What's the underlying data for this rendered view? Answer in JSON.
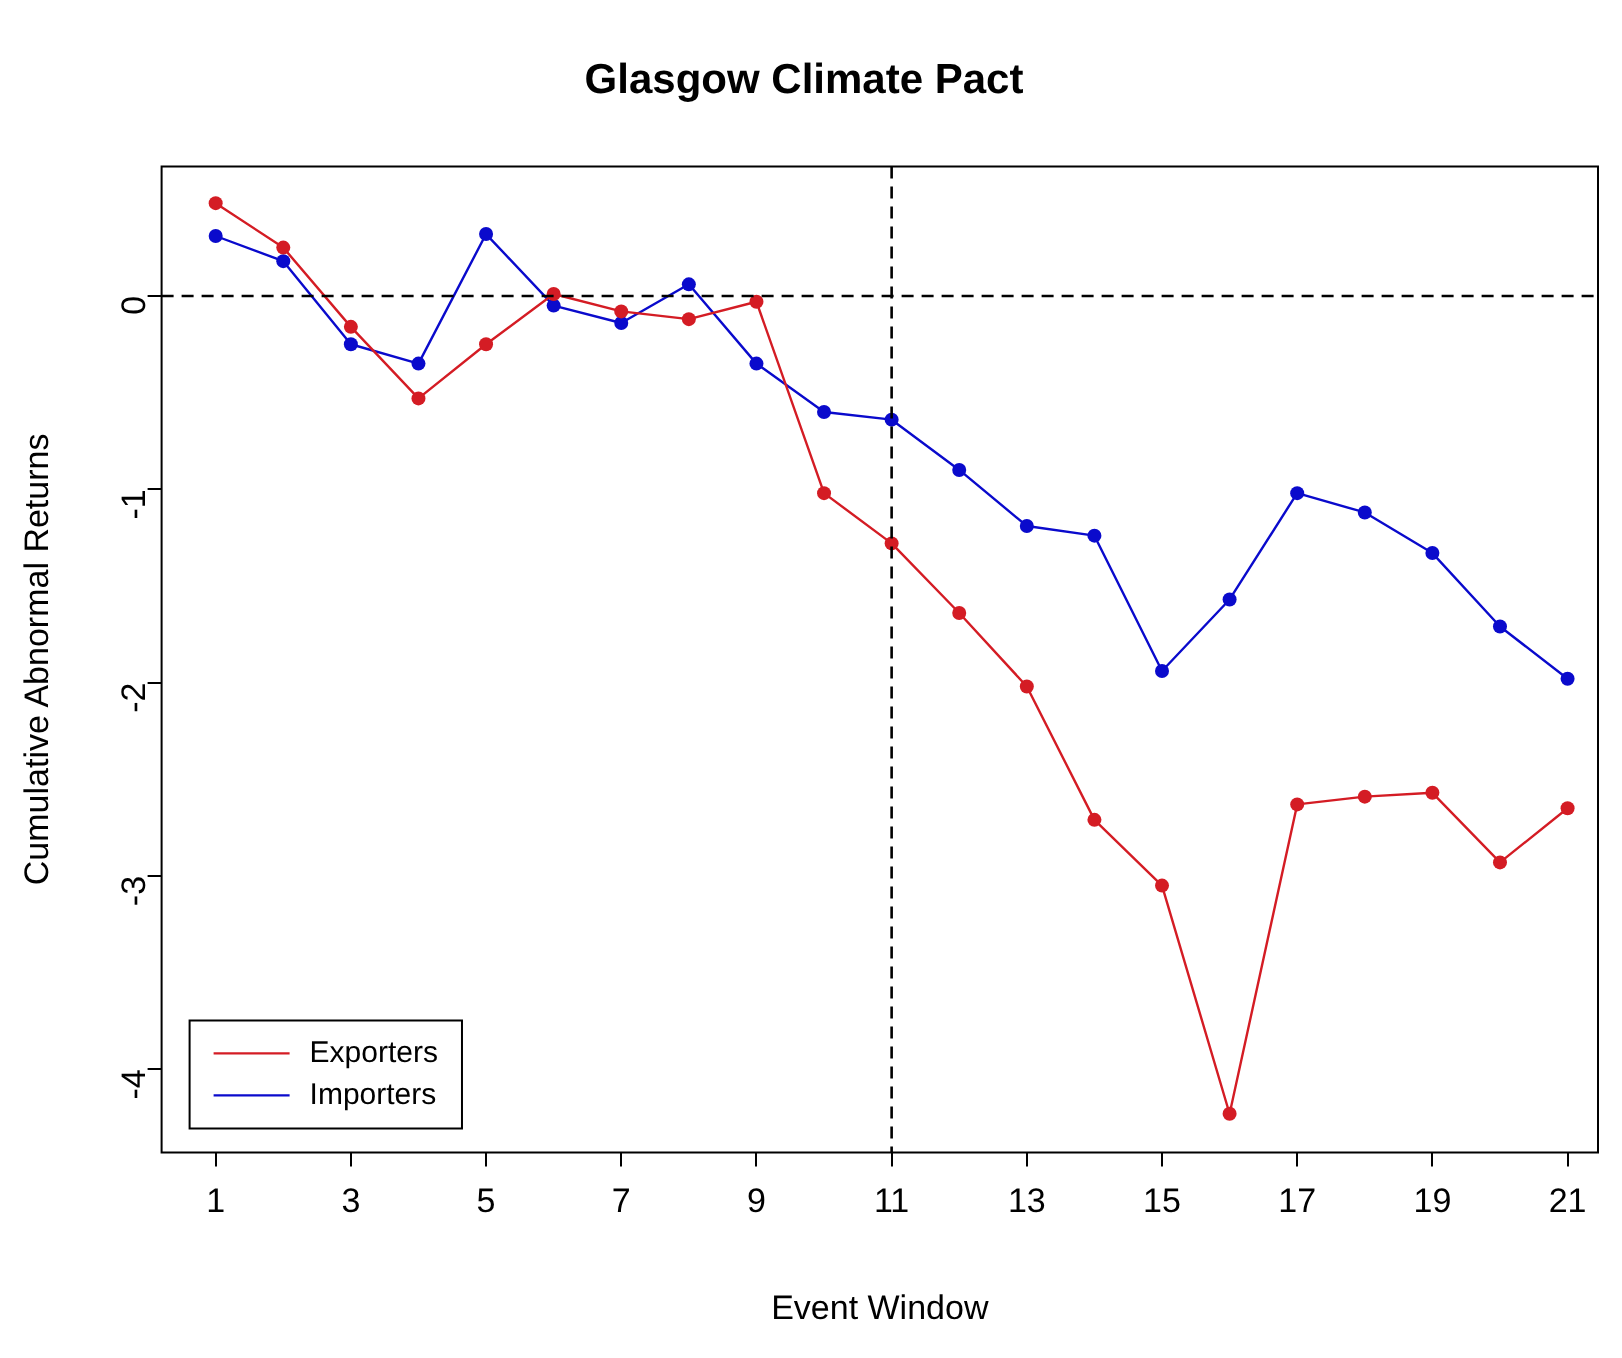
{
  "chart_data": {
    "type": "line",
    "title": "Glasgow Climate Pact",
    "xlabel": "Event Window",
    "ylabel": "Cumulative Abnormal Returns",
    "x": [
      1,
      2,
      3,
      4,
      5,
      6,
      7,
      8,
      9,
      10,
      11,
      12,
      13,
      14,
      15,
      16,
      17,
      18,
      19,
      20,
      21
    ],
    "series": [
      {
        "name": "Exporters",
        "color": "#d41c24",
        "values": [
          0.48,
          0.25,
          -0.16,
          -0.53,
          -0.25,
          0.01,
          -0.08,
          -0.12,
          -0.03,
          -1.02,
          -1.28,
          -1.64,
          -2.02,
          -2.71,
          -3.05,
          -4.23,
          -2.63,
          -2.59,
          -2.57,
          -2.93,
          -2.65
        ]
      },
      {
        "name": "Importers",
        "color": "#0a0acc",
        "values": [
          0.31,
          0.18,
          -0.25,
          -0.35,
          0.32,
          -0.05,
          -0.14,
          0.06,
          -0.35,
          -0.6,
          -0.64,
          -0.9,
          -1.19,
          -1.24,
          -1.94,
          -1.57,
          -1.02,
          -1.12,
          -1.33,
          -1.71,
          -1.98
        ]
      }
    ],
    "xlim": [
      0.2,
      21.45
    ],
    "xticks": [
      1,
      3,
      5,
      7,
      9,
      11,
      13,
      15,
      17,
      19,
      21
    ],
    "ylim": [
      -4.43,
      0.67
    ],
    "yticks": [
      -4,
      -3,
      -2,
      -1,
      0
    ],
    "ref_lines": [
      {
        "axis": "y",
        "value": 0,
        "line_style": "dashed",
        "color": "#000000"
      },
      {
        "axis": "x",
        "value": 11,
        "line_style": "dashed",
        "color": "#000000"
      }
    ],
    "grid": false,
    "legend": "bottom left",
    "marker": "circle",
    "line_style": "solid"
  }
}
